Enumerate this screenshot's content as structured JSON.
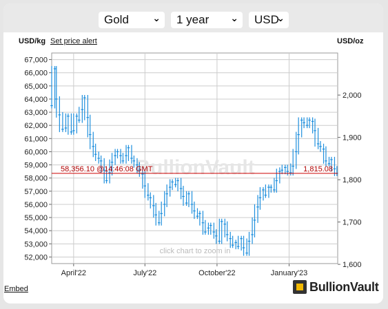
{
  "controls": {
    "metal": "Gold",
    "period": "1 year",
    "currency": "USD"
  },
  "labels": {
    "left_unit": "USD/kg",
    "alert_link": "Set price alert",
    "right_unit": "USD/oz",
    "embed": "Embed",
    "brand": "BullionVault",
    "watermark": "BullionVault",
    "zoom_hint": "click chart to zoom in"
  },
  "colors": {
    "series": "#1e8fdd",
    "price_line": "#cc0000",
    "grid": "#cccccc"
  },
  "chart_data": {
    "type": "line",
    "title": "",
    "xlabel": "",
    "ylabel": "USD/kg",
    "y2label": "USD/oz",
    "ylim": [
      51500,
      67500
    ],
    "y2lim": [
      1601.8,
      2099.4
    ],
    "yticks": [
      "52,000",
      "53,000",
      "54,000",
      "55,000",
      "56,000",
      "57,000",
      "58,000",
      "59,000",
      "60,000",
      "61,000",
      "62,000",
      "63,000",
      "64,000",
      "65,000",
      "66,000",
      "67,000"
    ],
    "ytick_values": [
      52000,
      53000,
      54000,
      55000,
      56000,
      57000,
      58000,
      59000,
      60000,
      61000,
      62000,
      63000,
      64000,
      65000,
      66000,
      67000
    ],
    "y2ticks": [
      "1,600",
      "1,700",
      "1,800",
      "1,900",
      "2,000"
    ],
    "y2tick_values": [
      1600,
      1700,
      1800,
      1900,
      2000
    ],
    "xticks": [
      "April'22",
      "July'22",
      "October'22",
      "January'23"
    ],
    "xtick_dates": [
      "2022-04-01",
      "2022-07-01",
      "2022-10-01",
      "2023-01-01"
    ],
    "xlim": [
      "2022-03-04",
      "2023-03-04"
    ],
    "current_price_kg": "58,356.10",
    "current_price_oz": "1,815.08",
    "current_time": "@14:46:08 GMT",
    "current_value": 58356.1,
    "grid": true,
    "series": [
      {
        "x": [
          "2022-03-04",
          "2022-03-08",
          "2022-03-10",
          "2022-03-14",
          "2022-03-18",
          "2022-03-22",
          "2022-03-25",
          "2022-03-29",
          "2022-04-01",
          "2022-04-05",
          "2022-04-08",
          "2022-04-12",
          "2022-04-15",
          "2022-04-19",
          "2022-04-22",
          "2022-04-26",
          "2022-04-29",
          "2022-05-03",
          "2022-05-06",
          "2022-05-10",
          "2022-05-13",
          "2022-05-17",
          "2022-05-20",
          "2022-05-24",
          "2022-05-27",
          "2022-05-31",
          "2022-06-03",
          "2022-06-07",
          "2022-06-10",
          "2022-06-14",
          "2022-06-17",
          "2022-06-21",
          "2022-06-24",
          "2022-06-28",
          "2022-07-01",
          "2022-07-05",
          "2022-07-08",
          "2022-07-12",
          "2022-07-15",
          "2022-07-19",
          "2022-07-22",
          "2022-07-26",
          "2022-07-29",
          "2022-08-02",
          "2022-08-05",
          "2022-08-09",
          "2022-08-12",
          "2022-08-16",
          "2022-08-19",
          "2022-08-23",
          "2022-08-26",
          "2022-08-30",
          "2022-09-02",
          "2022-09-06",
          "2022-09-09",
          "2022-09-13",
          "2022-09-16",
          "2022-09-20",
          "2022-09-23",
          "2022-09-27",
          "2022-09-30",
          "2022-10-04",
          "2022-10-07",
          "2022-10-11",
          "2022-10-14",
          "2022-10-18",
          "2022-10-21",
          "2022-10-25",
          "2022-10-28",
          "2022-11-01",
          "2022-11-04",
          "2022-11-08",
          "2022-11-11",
          "2022-11-15",
          "2022-11-18",
          "2022-11-22",
          "2022-11-25",
          "2022-11-29",
          "2022-12-02",
          "2022-12-06",
          "2022-12-09",
          "2022-12-13",
          "2022-12-16",
          "2022-12-20",
          "2022-12-23",
          "2022-12-27",
          "2022-12-30",
          "2023-01-03",
          "2023-01-06",
          "2023-01-10",
          "2023-01-13",
          "2023-01-17",
          "2023-01-20",
          "2023-01-24",
          "2023-01-27",
          "2023-01-31",
          "2023-02-03",
          "2023-02-07",
          "2023-02-10",
          "2023-02-14",
          "2023-02-17",
          "2023-02-21",
          "2023-02-24",
          "2023-02-28",
          "2023-03-03"
        ],
        "values": [
          63500,
          66300,
          64000,
          62800,
          61700,
          61800,
          62700,
          61500,
          61600,
          62700,
          62400,
          63200,
          64100,
          62600,
          61300,
          60400,
          59800,
          59500,
          59300,
          58600,
          57800,
          58400,
          59200,
          59700,
          60000,
          59700,
          59300,
          59700,
          60300,
          59500,
          59300,
          59000,
          58600,
          58300,
          57400,
          56700,
          56500,
          55900,
          55200,
          54600,
          55300,
          56000,
          56800,
          57300,
          57700,
          57500,
          57800,
          57200,
          56600,
          56100,
          56800,
          56000,
          55500,
          55100,
          55300,
          54600,
          53900,
          54200,
          54400,
          53900,
          53600,
          53200,
          54700,
          54500,
          53700,
          53400,
          52900,
          53100,
          52800,
          53400,
          52700,
          52300,
          53200,
          53700,
          54800,
          55800,
          56500,
          57100,
          56700,
          57300,
          57300,
          57100,
          57800,
          58500,
          58600,
          58800,
          58500,
          58400,
          58900,
          60000,
          61300,
          62400,
          62200,
          62000,
          62400,
          62300,
          61600,
          60600,
          60400,
          60200,
          59300,
          59100,
          59400,
          58700,
          58356
        ]
      }
    ]
  }
}
